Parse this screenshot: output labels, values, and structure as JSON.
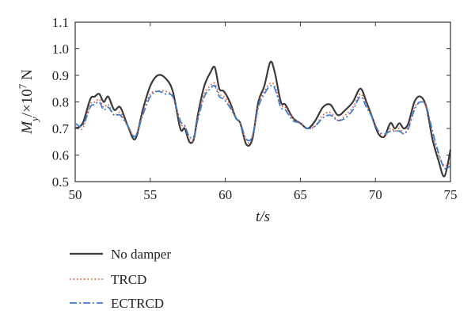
{
  "chart_data": {
    "type": "line",
    "xlabel": "t/s",
    "ylabel": "My/×10⁷ N",
    "xlim": [
      50,
      75
    ],
    "ylim": [
      0.5,
      1.1
    ],
    "xticks": [
      50,
      55,
      60,
      65,
      70,
      75
    ],
    "yticks": [
      0.5,
      0.6,
      0.7,
      0.8,
      0.9,
      1.0,
      1.1
    ],
    "xtick_labels": [
      "50",
      "55",
      "60",
      "65",
      "70",
      "75"
    ],
    "ytick_labels": [
      "0.5",
      "0.6",
      "0.7",
      "0.8",
      "0.9",
      "1.0",
      "1.1"
    ],
    "grid": false,
    "legend_placement": "below",
    "series": [
      {
        "name": "No damper",
        "color": "#3a3a3a",
        "style": "solid",
        "x": [
          50.0,
          50.5,
          51.0,
          51.3,
          51.6,
          51.9,
          52.2,
          52.6,
          53.0,
          53.5,
          54.0,
          54.5,
          55.0,
          55.5,
          56.0,
          56.5,
          57.0,
          57.3,
          57.6,
          57.9,
          58.2,
          58.6,
          59.0,
          59.3,
          59.6,
          59.9,
          60.3,
          60.7,
          61.0,
          61.4,
          61.8,
          62.2,
          62.6,
          63.0,
          63.3,
          63.7,
          64.0,
          64.5,
          65.0,
          65.5,
          66.0,
          66.5,
          67.0,
          67.5,
          68.0,
          68.5,
          69.0,
          69.4,
          69.8,
          70.2,
          70.6,
          71.0,
          71.3,
          71.6,
          71.9,
          72.2,
          72.6,
          73.0,
          73.4,
          73.8,
          74.2,
          74.6,
          75.0
        ],
        "values": [
          0.7,
          0.72,
          0.81,
          0.82,
          0.83,
          0.8,
          0.82,
          0.77,
          0.78,
          0.71,
          0.66,
          0.77,
          0.86,
          0.9,
          0.89,
          0.84,
          0.7,
          0.7,
          0.65,
          0.66,
          0.76,
          0.86,
          0.91,
          0.93,
          0.85,
          0.84,
          0.8,
          0.74,
          0.72,
          0.64,
          0.66,
          0.8,
          0.86,
          0.95,
          0.91,
          0.8,
          0.79,
          0.74,
          0.72,
          0.7,
          0.73,
          0.78,
          0.79,
          0.75,
          0.77,
          0.8,
          0.85,
          0.8,
          0.74,
          0.68,
          0.67,
          0.72,
          0.7,
          0.72,
          0.7,
          0.72,
          0.8,
          0.82,
          0.78,
          0.66,
          0.58,
          0.52,
          0.62
        ]
      },
      {
        "name": "TRCD",
        "color": "#e05a3a",
        "style": "dotted",
        "x": [
          50.0,
          50.5,
          51.0,
          51.3,
          51.6,
          51.9,
          52.2,
          52.6,
          53.0,
          53.5,
          54.0,
          54.5,
          55.0,
          55.5,
          56.0,
          56.5,
          57.0,
          57.3,
          57.6,
          57.9,
          58.2,
          58.6,
          59.0,
          59.3,
          59.6,
          59.9,
          60.3,
          60.7,
          61.0,
          61.4,
          61.8,
          62.2,
          62.6,
          63.0,
          63.3,
          63.7,
          64.0,
          64.5,
          65.0,
          65.5,
          66.0,
          66.5,
          67.0,
          67.5,
          68.0,
          68.5,
          69.0,
          69.4,
          69.8,
          70.2,
          70.6,
          71.0,
          71.3,
          71.6,
          71.9,
          72.2,
          72.6,
          73.0,
          73.4,
          73.8,
          74.2,
          74.6,
          75.0
        ],
        "values": [
          0.71,
          0.7,
          0.79,
          0.8,
          0.81,
          0.78,
          0.79,
          0.75,
          0.76,
          0.71,
          0.67,
          0.76,
          0.83,
          0.84,
          0.84,
          0.82,
          0.72,
          0.71,
          0.66,
          0.66,
          0.75,
          0.83,
          0.86,
          0.87,
          0.83,
          0.82,
          0.79,
          0.74,
          0.72,
          0.65,
          0.67,
          0.79,
          0.84,
          0.87,
          0.86,
          0.79,
          0.78,
          0.74,
          0.72,
          0.7,
          0.71,
          0.75,
          0.76,
          0.73,
          0.75,
          0.78,
          0.83,
          0.79,
          0.74,
          0.69,
          0.67,
          0.7,
          0.69,
          0.7,
          0.68,
          0.71,
          0.78,
          0.8,
          0.78,
          0.68,
          0.6,
          0.56,
          0.57
        ]
      },
      {
        "name": "ECTRCD",
        "color": "#3f7fd0",
        "style": "dashdot",
        "x": [
          50.0,
          50.5,
          51.0,
          51.3,
          51.6,
          51.9,
          52.2,
          52.6,
          53.0,
          53.5,
          54.0,
          54.5,
          55.0,
          55.5,
          56.0,
          56.5,
          57.0,
          57.3,
          57.6,
          57.9,
          58.2,
          58.6,
          59.0,
          59.3,
          59.6,
          59.9,
          60.3,
          60.7,
          61.0,
          61.4,
          61.8,
          62.2,
          62.6,
          63.0,
          63.3,
          63.7,
          64.0,
          64.5,
          65.0,
          65.5,
          66.0,
          66.5,
          67.0,
          67.5,
          68.0,
          68.5,
          69.0,
          69.4,
          69.8,
          70.2,
          70.6,
          71.0,
          71.3,
          71.6,
          71.9,
          72.2,
          72.6,
          73.0,
          73.4,
          73.8,
          74.2,
          74.6,
          75.0
        ],
        "values": [
          0.72,
          0.71,
          0.78,
          0.79,
          0.8,
          0.77,
          0.78,
          0.75,
          0.75,
          0.71,
          0.67,
          0.75,
          0.82,
          0.84,
          0.83,
          0.82,
          0.73,
          0.71,
          0.67,
          0.67,
          0.74,
          0.82,
          0.85,
          0.86,
          0.82,
          0.81,
          0.78,
          0.74,
          0.72,
          0.66,
          0.67,
          0.78,
          0.83,
          0.86,
          0.85,
          0.78,
          0.77,
          0.73,
          0.72,
          0.7,
          0.71,
          0.74,
          0.75,
          0.73,
          0.74,
          0.77,
          0.82,
          0.78,
          0.74,
          0.69,
          0.68,
          0.69,
          0.69,
          0.69,
          0.68,
          0.7,
          0.77,
          0.8,
          0.78,
          0.69,
          0.61,
          0.55,
          0.56
        ]
      }
    ]
  }
}
